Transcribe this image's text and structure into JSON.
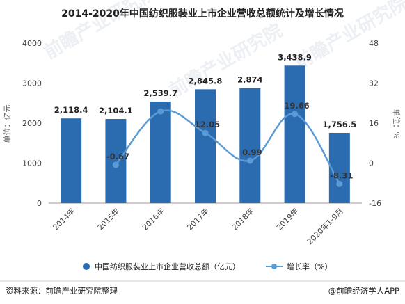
{
  "chart_data": {
    "type": "bar",
    "title": "2014-2020年中国纺织服装业上市企业营收总额统计及增长情况",
    "categories": [
      "2014年",
      "2015年",
      "2016年",
      "2017年",
      "2018年",
      "2019年",
      "2020年1-9月"
    ],
    "series": [
      {
        "name": "中国纺织服装业上市企业营收总额（亿元）",
        "type": "bar",
        "axis": "left",
        "values": [
          2118.4,
          2104.1,
          2539.7,
          2845.8,
          2874,
          3438.9,
          1756.5
        ],
        "labels": [
          "2,118.4",
          "2,104.1",
          "2,539.7",
          "2,845.8",
          "2,874",
          "3,438.9",
          "1,756.5"
        ]
      },
      {
        "name": "增长率（%）",
        "type": "line",
        "axis": "right",
        "values": [
          null,
          -0.67,
          20.7,
          12.05,
          0.99,
          19.66,
          -8.31
        ],
        "labels": [
          "",
          "-0.67",
          "",
          "12.05",
          "0.99",
          "19.66",
          "-8.31"
        ]
      }
    ],
    "ylabel": "单位：亿元",
    "ylabel_right": "单位：%",
    "ylim": [
      0,
      4000
    ],
    "yticks": [
      "0",
      "1000",
      "2000",
      "3000",
      "4000"
    ],
    "ylim_right": [
      -16,
      48
    ],
    "yticks_right": [
      "-16",
      "0",
      "16",
      "32",
      "48"
    ],
    "grid": false,
    "legend_position": "bottom",
    "colors": {
      "bar": "#2b6cb0",
      "line": "#5b9bd5"
    }
  },
  "footer": {
    "source": "资料来源：前瞻产业研究院整理",
    "brand": "@前瞻经济学人APP"
  },
  "watermark": "前瞻产业研究院"
}
